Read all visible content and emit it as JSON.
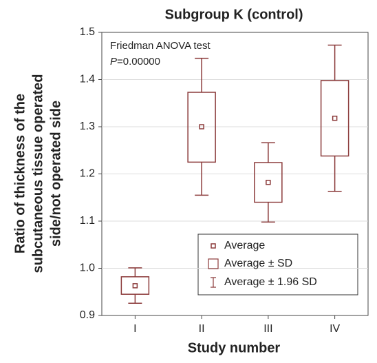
{
  "chart_data": {
    "type": "box",
    "title": "Subgroup K (control)",
    "xlabel": "Study number",
    "ylabel": [
      "Ratio of thickness of the",
      "subcutaneous tissue operated",
      "side/not operated side"
    ],
    "annotation": {
      "line1": "Friedman ANOVA test",
      "italic": "P",
      "text": "=0.00000"
    },
    "categories": [
      "I",
      "II",
      "III",
      "IV"
    ],
    "color": "#8b3a3a",
    "mean": [
      0.963,
      1.3,
      1.182,
      1.318
    ],
    "box_low": [
      0.945,
      1.225,
      1.14,
      1.238
    ],
    "box_high": [
      0.982,
      1.373,
      1.224,
      1.398
    ],
    "whisker_low": [
      0.926,
      1.155,
      1.098,
      1.163
    ],
    "whisker_high": [
      1.001,
      1.445,
      1.266,
      1.473
    ],
    "legend": [
      "Average",
      "Average ± SD",
      "Average ± 1.96 SD"
    ],
    "ylim": [
      0.9,
      1.5
    ],
    "yticks": [
      {
        "value": 0.9,
        "label": "0.9"
      },
      {
        "value": 1.0,
        "label": "1.0"
      },
      {
        "value": 1.1,
        "label": "1.1"
      },
      {
        "value": 1.2,
        "label": "1.2"
      },
      {
        "value": 1.3,
        "label": "1.3"
      },
      {
        "value": 1.4,
        "label": "1.4"
      },
      {
        "value": 1.5,
        "label": "1.5"
      }
    ],
    "grid": true
  }
}
